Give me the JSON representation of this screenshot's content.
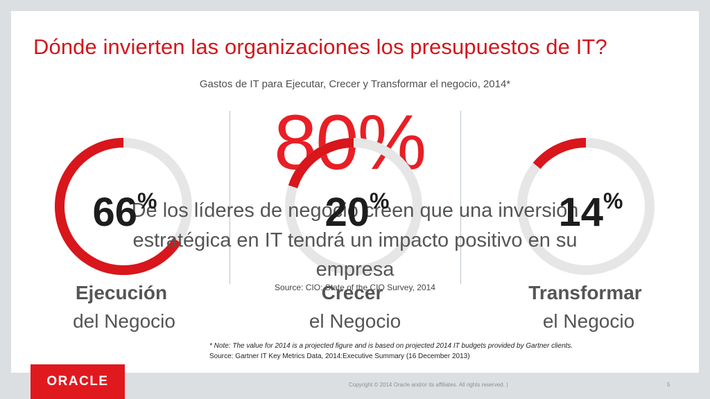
{
  "title": "Dónde invierten las organizaciones los presupuestos de IT?",
  "subtitle": "Gastos de IT para Ejecutar, Crecer y Transformar el negocio, 2014*",
  "headline": {
    "value": "80%",
    "line1": "De los líderes de negocio creen que una inversión",
    "line2": "estratégica en IT tendrá un impacto positivo en su",
    "line3": "empresa",
    "source": "Source: CIO: State of the CIO Survey, 2014"
  },
  "rings": [
    {
      "value": 66,
      "number": "66",
      "symbol": "%",
      "label_bold": "Ejecución",
      "label_sub": "del Negocio"
    },
    {
      "value": 20,
      "number": "20",
      "symbol": "%",
      "label_bold": "Crecer",
      "label_sub": "el Negocio"
    },
    {
      "value": 14,
      "number": "14",
      "symbol": "%",
      "label_bold": "Transformar",
      "label_sub": "el Negocio"
    }
  ],
  "colors": {
    "accent": "#e0191f",
    "ring_track": "#e6e6e6",
    "ring_fill": "#d8161c"
  },
  "note": {
    "line1": "* Note: The value for 2014 is a projected figure and is based on projected 2014 IT budgets provided by Gartner clients.",
    "line2": "Source: Gartner IT Key Metrics Data, 2014:Executive Summary (16 December 2013)"
  },
  "footer": {
    "logo": "ORACLE",
    "copyright": "Copyright © 2014 Oracle and/or its affiliates. All rights reserved.  |",
    "page": "5"
  }
}
